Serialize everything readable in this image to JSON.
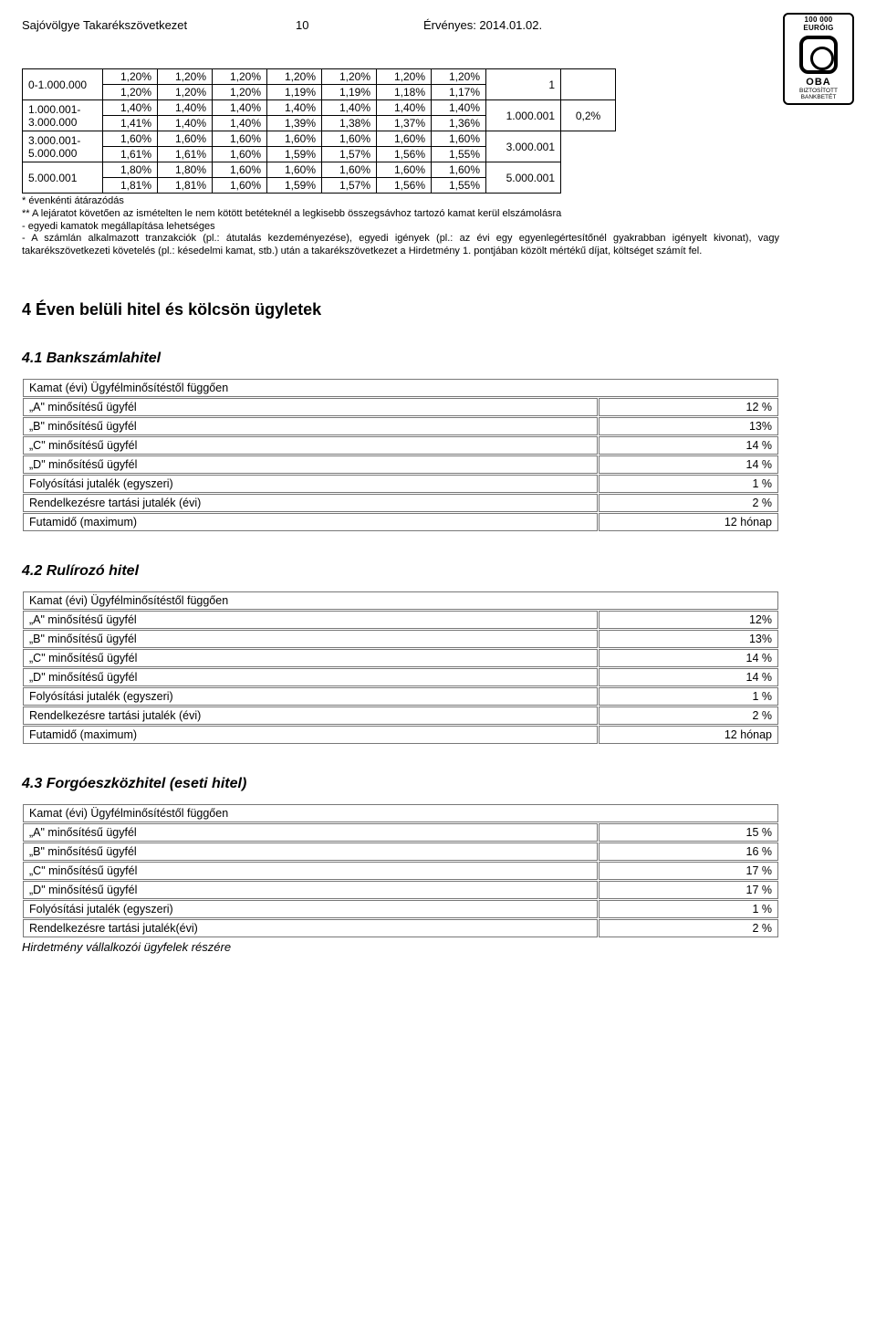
{
  "header": {
    "org": "Sajóvölgye Takarékszövetkezet",
    "page": "10",
    "valid": "Érvényes: 2014.01.02."
  },
  "logo": {
    "top": "100 000",
    "top2": "EURÓIG",
    "oba": "OBA",
    "sub1": "BIZTOSÍTOTT",
    "sub2": "BANKBETÉT"
  },
  "rate_rows": [
    {
      "label": "0-1.000.000",
      "r1": [
        "1,20%",
        "1,20%",
        "1,20%",
        "1,20%",
        "1,20%",
        "1,20%",
        "1,20%"
      ],
      "r2": [
        "1,20%",
        "1,20%",
        "1,20%",
        "1,19%",
        "1,19%",
        "1,18%",
        "1,17%"
      ],
      "e1": "1",
      "e2": ""
    },
    {
      "label": "1.000.001-\n3.000.000",
      "r1": [
        "1,40%",
        "1,40%",
        "1,40%",
        "1,40%",
        "1,40%",
        "1,40%",
        "1,40%"
      ],
      "r2": [
        "1,41%",
        "1,40%",
        "1,40%",
        "1,39%",
        "1,38%",
        "1,37%",
        "1,36%"
      ],
      "e1": "1.000.001",
      "e2": "0,2%"
    },
    {
      "label": "3.000.001-\n5.000.000",
      "r1": [
        "1,60%",
        "1,60%",
        "1,60%",
        "1,60%",
        "1,60%",
        "1,60%",
        "1,60%"
      ],
      "r2": [
        "1,61%",
        "1,61%",
        "1,60%",
        "1,59%",
        "1,57%",
        "1,56%",
        "1,55%"
      ],
      "e1": "3.000.001",
      "e2": ""
    },
    {
      "label": "5.000.001",
      "r1": [
        "1,80%",
        "1,80%",
        "1,60%",
        "1,60%",
        "1,60%",
        "1,60%",
        "1,60%"
      ],
      "r2": [
        "1,81%",
        "1,81%",
        "1,60%",
        "1,59%",
        "1,57%",
        "1,56%",
        "1,55%"
      ],
      "e1": "5.000.001",
      "e2": ""
    }
  ],
  "footnotes": [
    "* évenkénti átárazódás",
    "** A lejáratot követően az ismételten le nem kötött betéteknél a legkisebb összegsávhoz tartozó kamat kerül elszámolásra",
    "- egyedi kamatok megállapítása lehetséges",
    "- A számlán alkalmazott tranzakciók (pl.: átutalás kezdeményezése), egyedi igények (pl.: az évi egy egyenlegértesítőnél gyakrabban igényelt kivonat), vagy takarékszövetkezeti követelés (pl.: késedelmi kamat, stb.) után a takarékszövetkezet a Hirdetmény 1. pontjában közölt mértékű díjat, költséget számít fel."
  ],
  "sec4": {
    "title": "4   Éven belüli hitel és kölcsön ügyletek",
    "s1": {
      "title": "4.1  Bankszámlahitel",
      "head": "Kamat (évi) Ügyfélminősítéstől függően",
      "rows": [
        [
          "„A\" minősítésű ügyfél",
          "12 %"
        ],
        [
          "„B\" minősítésű ügyfél",
          "13%"
        ],
        [
          "„C\" minősítésű ügyfél",
          "14 %"
        ],
        [
          "„D\" minősítésű ügyfél",
          "14 %"
        ],
        [
          "Folyósítási jutalék (egyszeri)",
          "1 %"
        ],
        [
          "Rendelkezésre tartási jutalék (évi)",
          "2 %"
        ],
        [
          "Futamidő (maximum)",
          "12 hónap"
        ]
      ]
    },
    "s2": {
      "title": "4.2  Rulírozó hitel",
      "head": "Kamat (évi) Ügyfélminősítéstől függően",
      "rows": [
        [
          "„A\" minősítésű ügyfél",
          "12%"
        ],
        [
          "„B\" minősítésű ügyfél",
          "13%"
        ],
        [
          "„C\" minősítésű ügyfél",
          "14 %"
        ],
        [
          "„D\" minősítésű ügyfél",
          "14 %"
        ],
        [
          "Folyósítási jutalék (egyszeri)",
          "1 %"
        ],
        [
          "Rendelkezésre tartási jutalék (évi)",
          "2 %"
        ],
        [
          "Futamidő (maximum)",
          "12 hónap"
        ]
      ]
    },
    "s3": {
      "title": "4.3  Forgóeszközhitel (eseti hitel)",
      "head": "Kamat (évi) Ügyfélminősítéstől függően",
      "rows": [
        [
          "„A\" minősítésű ügyfél",
          "15 %"
        ],
        [
          "„B\" minősítésű ügyfél",
          "16 %"
        ],
        [
          "„C\" minősítésű ügyfél",
          "17 %"
        ],
        [
          "„D\" minősítésű ügyfél",
          "17 %"
        ],
        [
          "Folyósítási jutalék (egyszeri)",
          "1 %"
        ],
        [
          "Rendelkezésre tartási jutalék(évi)",
          "2 %"
        ]
      ]
    }
  },
  "footer": "Hirdetmény vállalkozói ügyfelek részére"
}
